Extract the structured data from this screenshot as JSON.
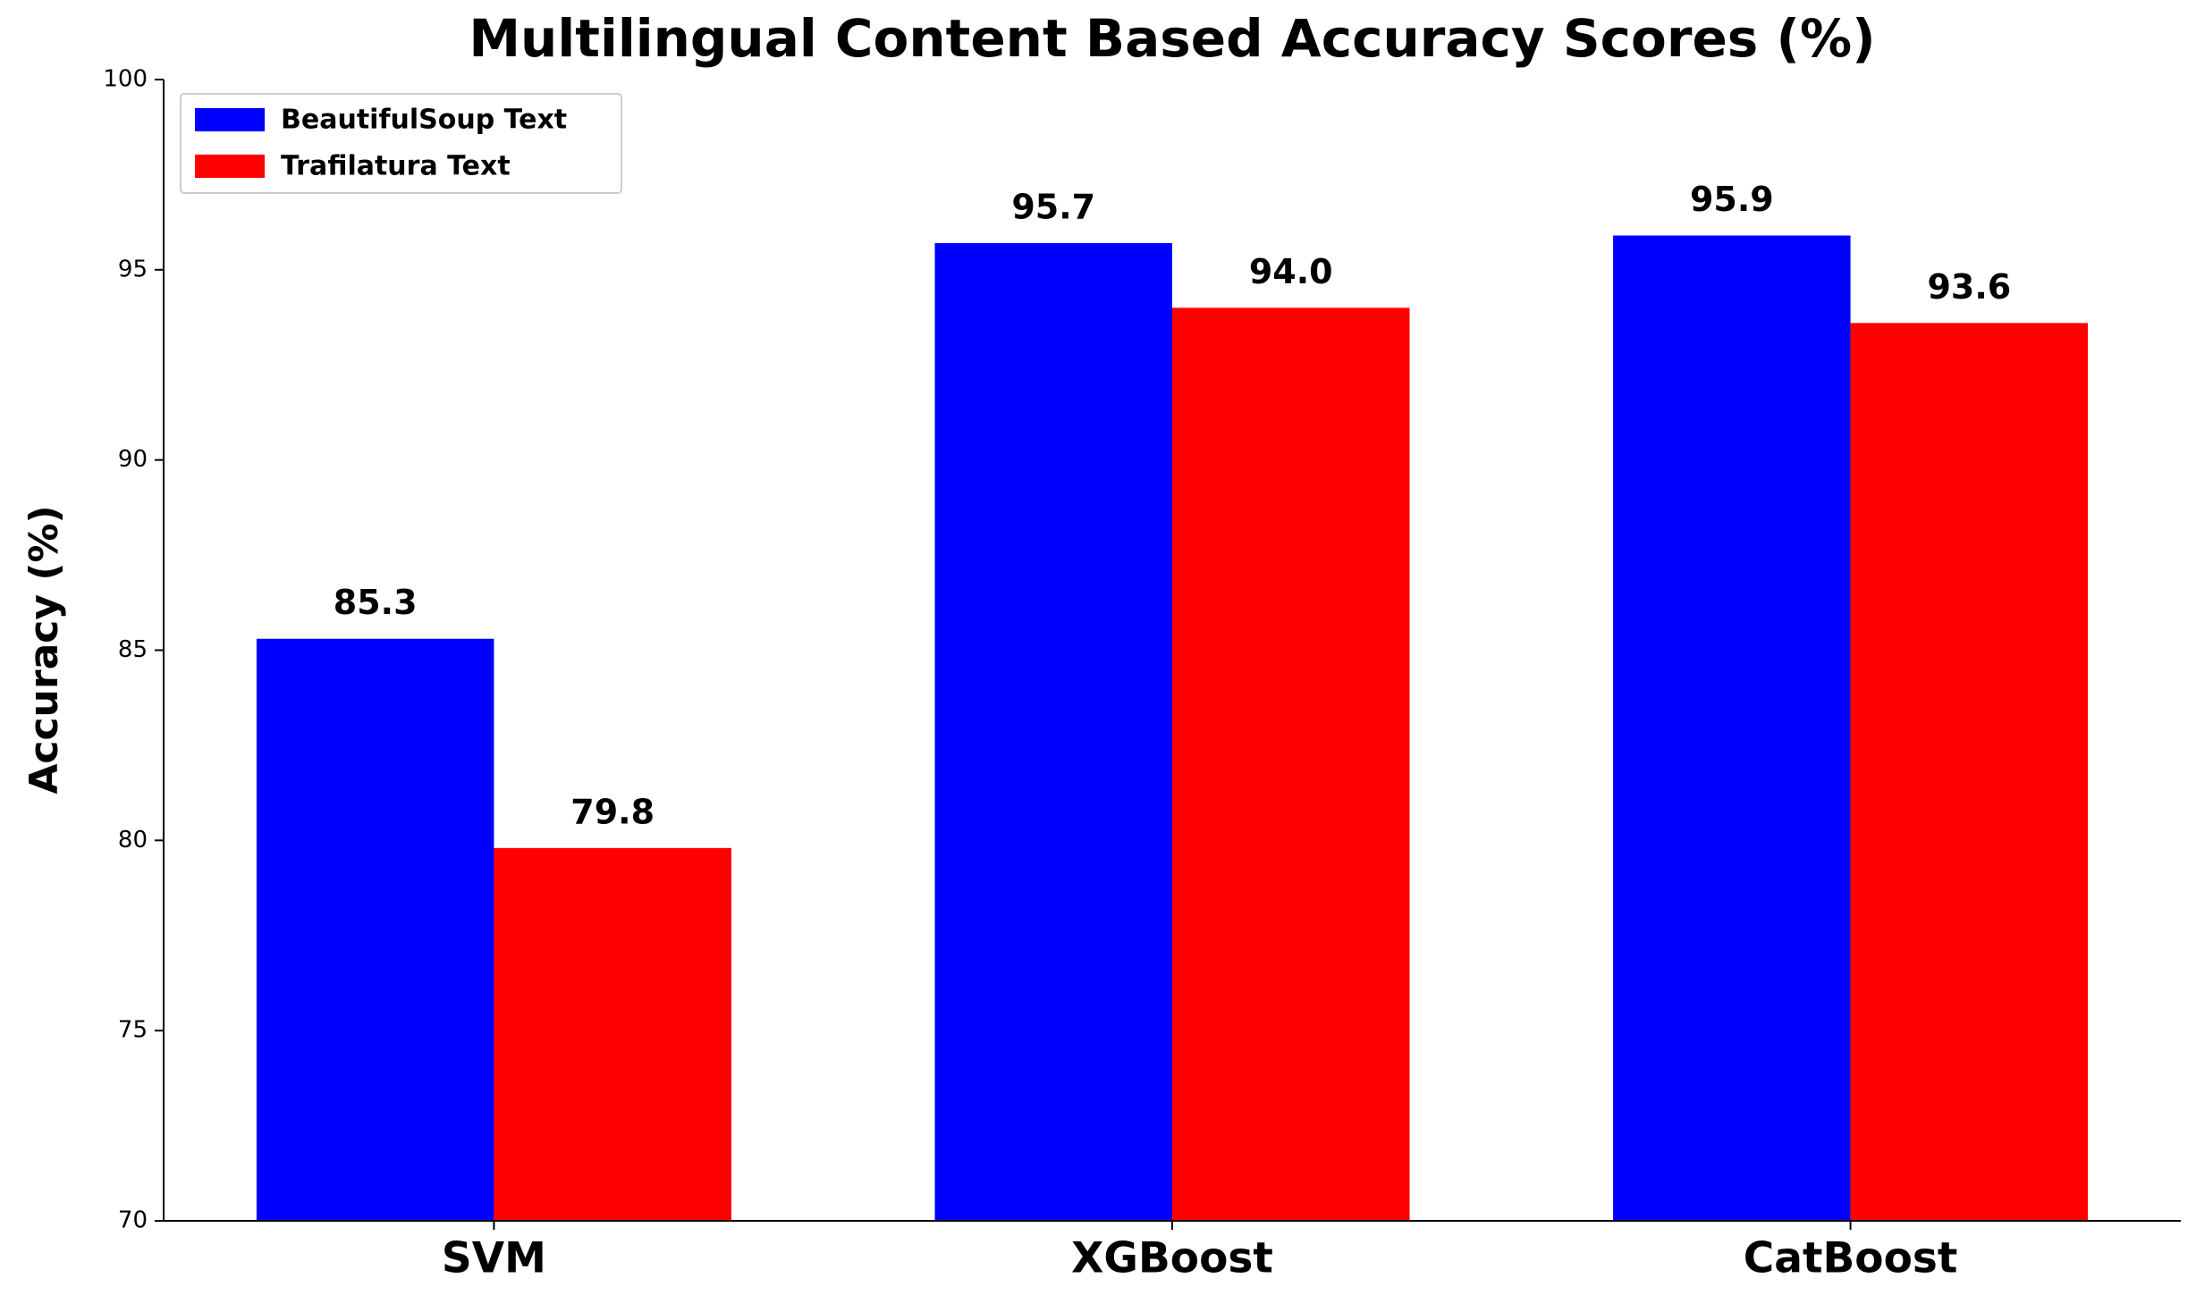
{
  "chart_data": {
    "type": "bar",
    "title": "Multilingual Content Based Accuracy Scores  (%)",
    "ylabel": "Accuracy (%)",
    "categories": [
      "SVM",
      "XGBoost",
      "CatBoost"
    ],
    "series": [
      {
        "name": "BeautifulSoup Text",
        "color": "#0000ff",
        "values": [
          85.3,
          95.7,
          95.9
        ],
        "value_labels": [
          "85.3",
          "95.7",
          "95.9"
        ]
      },
      {
        "name": "Trafilatura Text",
        "color": "#ff0000",
        "values": [
          79.8,
          94.0,
          93.6
        ],
        "value_labels": [
          "79.8",
          "94.0",
          "93.6"
        ]
      }
    ],
    "ylim": [
      70,
      100
    ],
    "yticks": [
      70,
      75,
      80,
      85,
      90,
      95,
      100
    ],
    "legend": "upper left"
  }
}
